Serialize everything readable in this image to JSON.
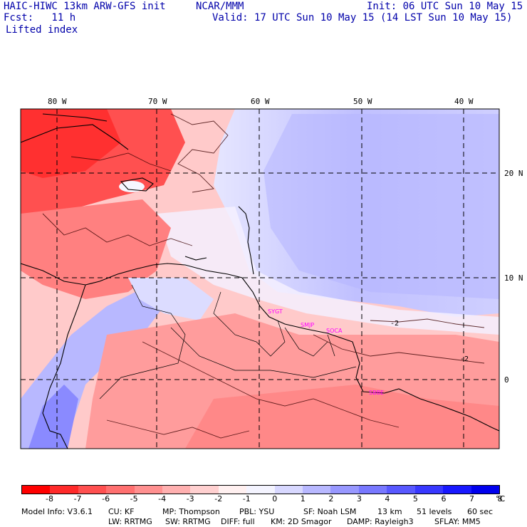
{
  "header": {
    "left_line1": "HAIC-HIWC 13km ARW-GFS init",
    "center_line1": "NCAR/MMM",
    "right_line1": "Init: 06 UTC Sun 10 May 15",
    "left_line2": "Fcst:   11 h",
    "right_line2": "Valid: 17 UTC Sun 10 May 15 (14 LST Sun 10 May 15)",
    "field_name": "Lifted index"
  },
  "map": {
    "lon_labels": [
      "80 W",
      "70 W",
      "60 W",
      "50 W",
      "40 W"
    ],
    "lat_labels": [
      "20 N",
      "10 N",
      "0"
    ],
    "stations": [
      "SYGT",
      "SMJP",
      "SOCA",
      "SBBE"
    ],
    "contour_labels": [
      "-2",
      "-2"
    ]
  },
  "colorbar": {
    "colors": [
      "#ff0000",
      "#ff2a2a",
      "#ff5050",
      "#ff7070",
      "#ff9090",
      "#ffb0b0",
      "#ffd0d0",
      "#fff0f0",
      "#f4f4ff",
      "#d8d8ff",
      "#b8b8ff",
      "#9898ff",
      "#7878ff",
      "#5858ff",
      "#3838ff",
      "#1818ff",
      "#0000ee"
    ],
    "labels": [
      "-8",
      "-7",
      "-6",
      "-5",
      "-4",
      "-3",
      "-2",
      "-1",
      "0",
      "1",
      "2",
      "3",
      "4",
      "5",
      "6",
      "7",
      "8"
    ],
    "unit": "°C"
  },
  "footer": {
    "model_info": "Model Info: V3.6.1",
    "cu": "CU: KF",
    "mp": "MP: Thompson",
    "pbl": "PBL: YSU",
    "sf": "SF: Noah LSM",
    "res": "13 km",
    "levels": "51 levels",
    "dt": "60 sec",
    "lw": "LW: RRTMG",
    "sw": "SW: RRTMG",
    "diff": "DIFF: full",
    "km": "KM: 2D Smagor",
    "damp": "DAMP: Rayleigh3",
    "sflay": "SFLAY: MM5"
  }
}
